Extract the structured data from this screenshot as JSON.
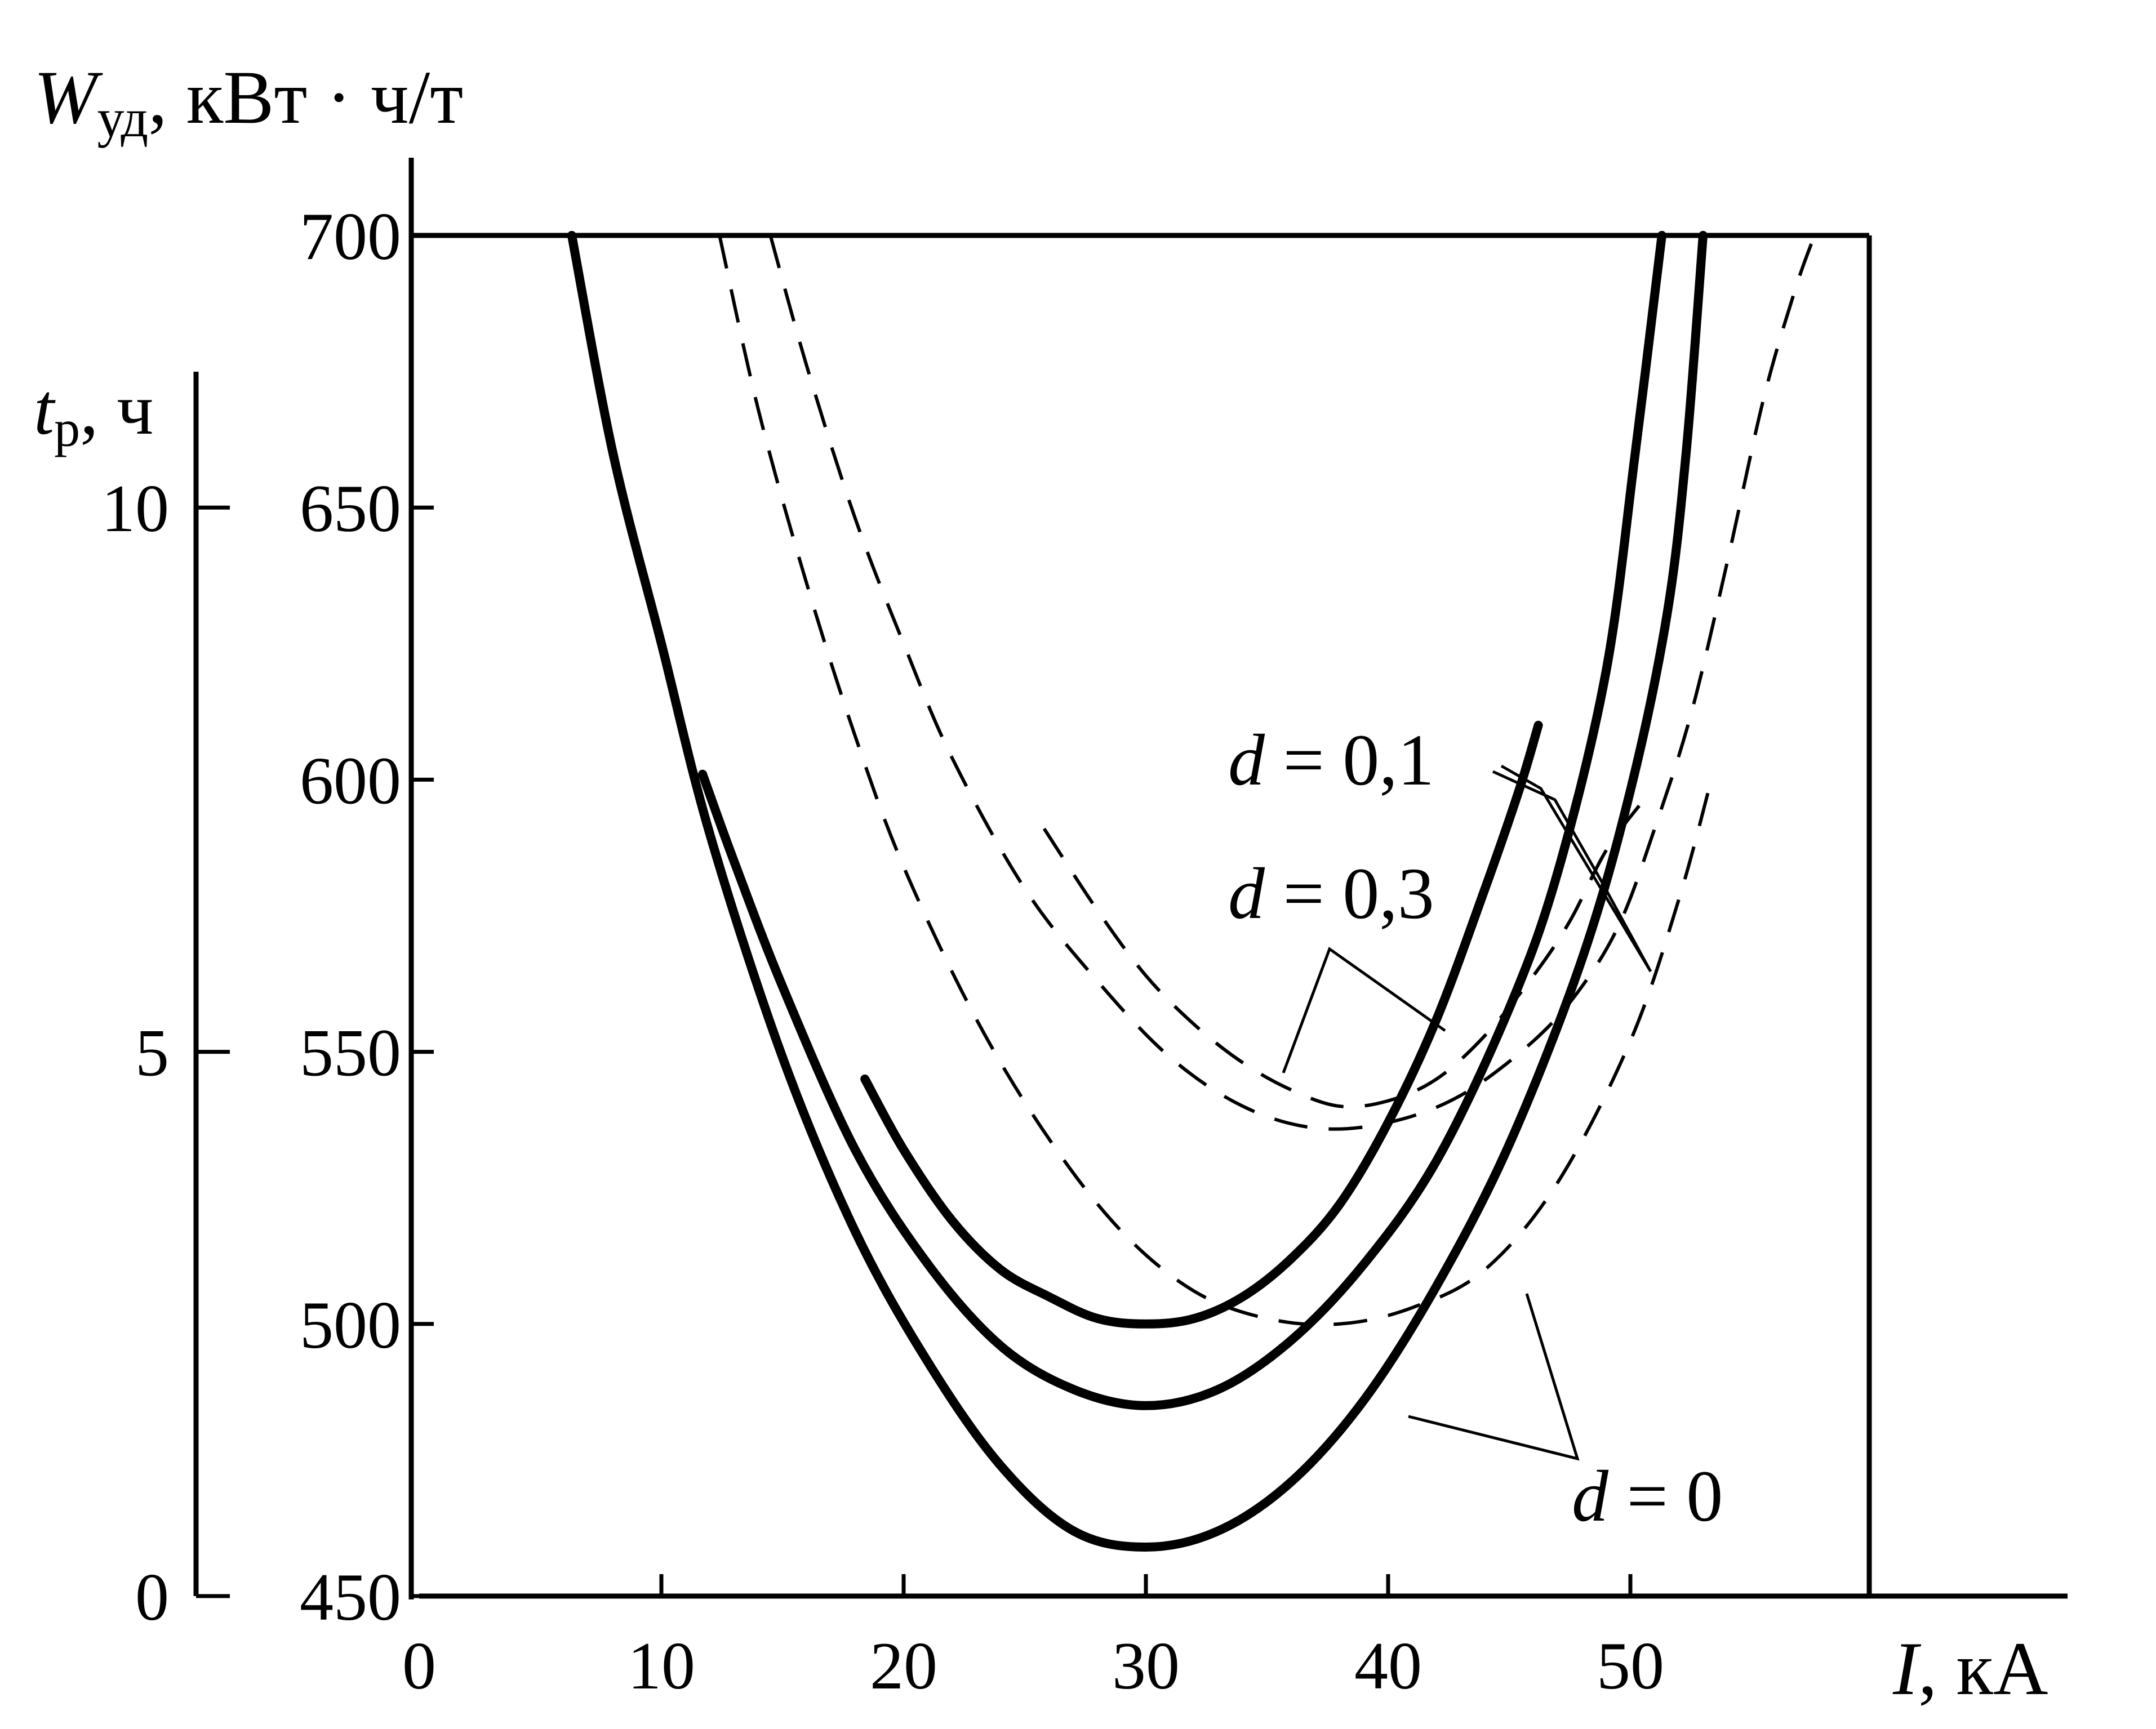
{
  "chart_data": {
    "type": "line",
    "y_axis_label_symbol": "W",
    "y_axis_label_subscript": "уд",
    "y_axis_label_units": ", кВт · ч/т",
    "y2_axis_label_symbol": "t",
    "y2_axis_label_subscript": "р",
    "y2_axis_label_units": ", ч",
    "x_axis_label_symbol": "I",
    "x_axis_label_units": ", кА",
    "xlim": [
      0,
      60
    ],
    "ylim": [
      450,
      700
    ],
    "y2lim": [
      0,
      12.5
    ],
    "x_ticks": [
      "0",
      "10",
      "20",
      "30",
      "40",
      "50"
    ],
    "y_ticks": [
      "450",
      "500",
      "550",
      "600",
      "650",
      "700"
    ],
    "y2_ticks": [
      "0",
      "5",
      "10"
    ],
    "grid": false,
    "series": [
      {
        "style": "solid",
        "x": [
          6.3,
          8,
          10,
          12,
          15,
          18,
          21,
          24,
          27,
          30,
          33,
          36,
          39,
          42,
          45,
          48,
          50,
          51.5,
          52.3,
          53
        ],
        "y": [
          700,
          660,
          625,
          590,
          549,
          517,
          493,
          474,
          462,
          459,
          462,
          471,
          486,
          507,
          533,
          567,
          598,
          630,
          660,
          700
        ]
      },
      {
        "style": "solid",
        "x": [
          11.7,
          13,
          15,
          18,
          21,
          24,
          27,
          30,
          33,
          36,
          39,
          42,
          45,
          47,
          49,
          50.2,
          51.3
        ],
        "y": [
          601,
          585,
          562,
          532,
          511,
          496,
          488,
          485,
          488,
          497,
          511,
          530,
          558,
          583,
          620,
          660,
          700
        ]
      },
      {
        "style": "solid",
        "x": [
          18.4,
          20,
          22,
          24,
          26,
          28,
          30,
          32,
          34,
          36,
          38,
          40,
          42,
          44,
          45.4,
          46.2
        ],
        "y": [
          545,
          532,
          519,
          510,
          505,
          501,
          500,
          501,
          505,
          512,
          522,
          537,
          556,
          580,
          598,
          610
        ]
      },
      {
        "style": "dashed",
        "x": [
          12.4,
          14,
          16,
          18,
          20,
          23,
          26,
          29,
          32,
          35,
          38,
          41,
          44,
          47,
          50,
          52,
          53.4
        ],
        "y": [
          700,
          668,
          636,
          608,
          584,
          556,
          534,
          517,
          506,
          501,
          500,
          503,
          510,
          526,
          552,
          578,
          601
        ]
      },
      {
        "style": "dashed",
        "x": [
          14.5,
          16,
          18,
          20,
          22,
          25,
          28,
          31,
          34,
          37,
          40,
          43,
          46,
          48,
          49.6,
          51,
          52.5,
          54,
          55.5,
          56.8,
          57.6
        ],
        "y": [
          700,
          676,
          648,
          625,
          604,
          580,
          563,
          549,
          540,
          536,
          537,
          542,
          552,
          562,
          574,
          591,
          612,
          640,
          670,
          690,
          700
        ]
      },
      {
        "style": "dashed",
        "x": [
          25.8,
          28,
          30,
          32,
          34,
          36,
          38,
          40,
          42,
          44,
          46,
          47.5,
          49,
          50.5
        ],
        "y": [
          591,
          576,
          564,
          555,
          548,
          543,
          540,
          541,
          545,
          553,
          564,
          574,
          587,
          596
        ]
      }
    ],
    "annotations": [
      {
        "italic": "d",
        "rest": " = 0,1"
      },
      {
        "italic": "d",
        "rest": " = 0,3"
      },
      {
        "italic": "d",
        "rest": " = 0"
      }
    ]
  }
}
